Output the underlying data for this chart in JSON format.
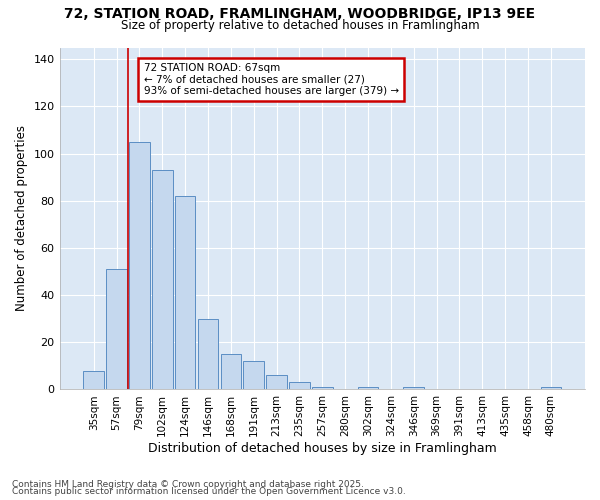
{
  "title1": "72, STATION ROAD, FRAMLINGHAM, WOODBRIDGE, IP13 9EE",
  "title2": "Size of property relative to detached houses in Framlingham",
  "xlabel": "Distribution of detached houses by size in Framlingham",
  "ylabel": "Number of detached properties",
  "categories": [
    "35sqm",
    "57sqm",
    "79sqm",
    "102sqm",
    "124sqm",
    "146sqm",
    "168sqm",
    "191sqm",
    "213sqm",
    "235sqm",
    "257sqm",
    "280sqm",
    "302sqm",
    "324sqm",
    "346sqm",
    "369sqm",
    "391sqm",
    "413sqm",
    "435sqm",
    "458sqm",
    "480sqm"
  ],
  "values": [
    8,
    51,
    105,
    93,
    82,
    30,
    15,
    12,
    6,
    3,
    1,
    0,
    1,
    0,
    1,
    0,
    0,
    0,
    0,
    0,
    1
  ],
  "bar_color": "#c5d8ee",
  "bar_edge_color": "#5b8ec4",
  "property_line_x": 1.5,
  "annotation_title": "72 STATION ROAD: 67sqm",
  "annotation_line1": "← 7% of detached houses are smaller (27)",
  "annotation_line2": "93% of semi-detached houses are larger (379) →",
  "annotation_box_color": "#ffffff",
  "annotation_box_edge": "#cc0000",
  "red_line_color": "#cc0000",
  "ylim": [
    0,
    145
  ],
  "yticks": [
    0,
    20,
    40,
    60,
    80,
    100,
    120,
    140
  ],
  "footer1": "Contains HM Land Registry data © Crown copyright and database right 2025.",
  "footer2": "Contains public sector information licensed under the Open Government Licence v3.0.",
  "plot_bg_color": "#dce8f5",
  "fig_bg_color": "#ffffff",
  "grid_color": "#ffffff"
}
